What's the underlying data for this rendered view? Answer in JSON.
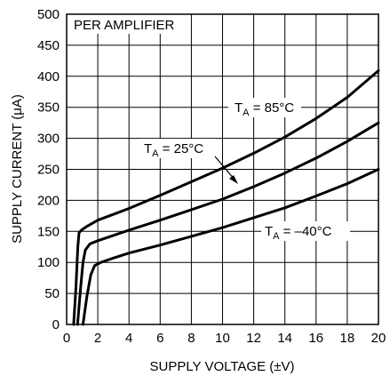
{
  "chart_data": {
    "type": "line",
    "xlabel": "SUPPLY VOLTAGE (±V)",
    "ylabel": "SUPPLY CURRENT (μA)",
    "xlim": [
      0,
      20
    ],
    "ylim": [
      0,
      500
    ],
    "xticks": [
      "0",
      "2",
      "4",
      "6",
      "8",
      "10",
      "12",
      "14",
      "16",
      "18",
      "20"
    ],
    "yticks": [
      "0",
      "50",
      "100",
      "150",
      "200",
      "250",
      "300",
      "350",
      "400",
      "450",
      "500"
    ],
    "grid": true,
    "annotations": [
      {
        "text": "PER AMPLIFIER"
      },
      {
        "text": "T",
        "sub": "A",
        "suffix": " = 85°C"
      },
      {
        "text": "T",
        "sub": "A",
        "suffix": " = 25°C"
      },
      {
        "text": "T",
        "sub": "A",
        "suffix": " = –40°C"
      }
    ],
    "series": [
      {
        "x": [
          0.45,
          0.6,
          0.72,
          0.8,
          1.0,
          1.3,
          2.0,
          4.0,
          6.0,
          8.0,
          10.0,
          12.0,
          14.0,
          16.0,
          18.0,
          20.0
        ],
        "y": [
          0,
          60,
          125,
          148,
          153,
          158,
          168,
          187,
          208,
          230,
          252,
          276,
          302,
          332,
          366,
          409
        ]
      },
      {
        "x": [
          0.7,
          0.9,
          1.05,
          1.2,
          1.5,
          2.0,
          4.0,
          6.0,
          8.0,
          10.0,
          12.0,
          14.0,
          16.0,
          18.0,
          20.0
        ],
        "y": [
          0,
          60,
          100,
          120,
          130,
          135,
          152,
          168,
          185,
          202,
          222,
          244,
          268,
          295,
          325
        ]
      },
      {
        "x": [
          1.05,
          1.3,
          1.55,
          1.8,
          2.2,
          3.0,
          4.0,
          6.0,
          8.0,
          10.0,
          12.0,
          14.0,
          16.0,
          18.0,
          20.0
        ],
        "y": [
          0,
          45,
          80,
          95,
          100,
          107,
          115,
          128,
          142,
          156,
          172,
          188,
          207,
          227,
          250
        ]
      }
    ]
  }
}
